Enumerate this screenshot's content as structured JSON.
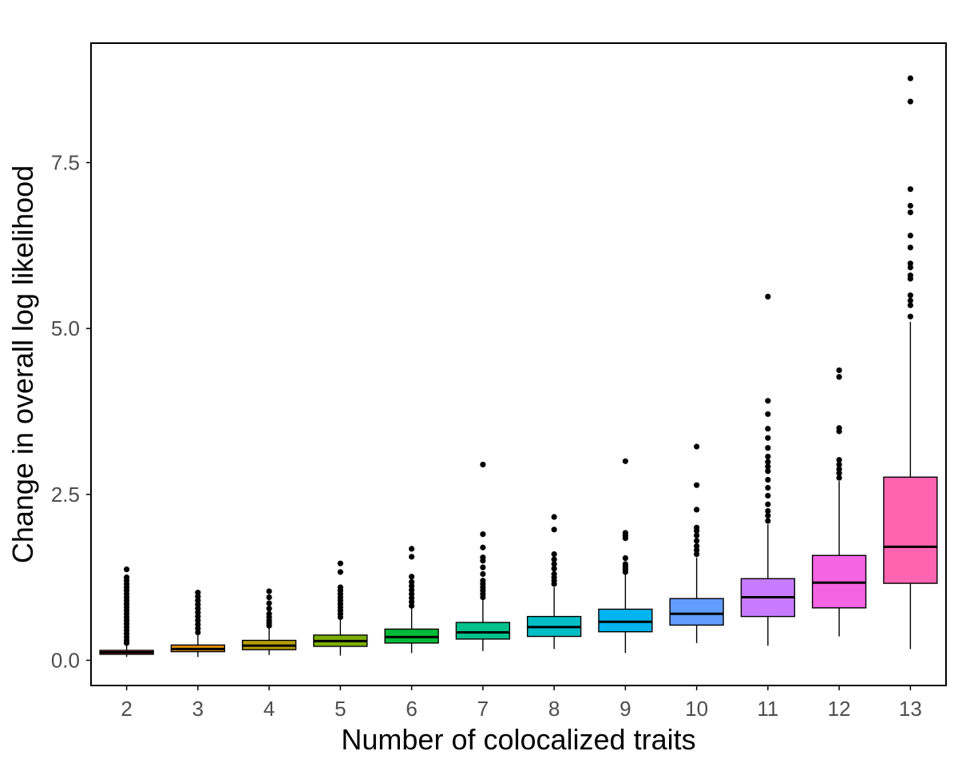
{
  "chart_data": {
    "type": "box",
    "xlabel": "Number of colocalized traits",
    "ylabel": "Change in overall log likelihood",
    "ylim": [
      -0.38,
      9.3
    ],
    "yticks": [
      0.0,
      2.5,
      5.0,
      7.5
    ],
    "ytick_labels": [
      "0.0",
      "2.5",
      "5.0",
      "7.5"
    ],
    "grid": false,
    "legend": "none",
    "categories": [
      "2",
      "3",
      "4",
      "5",
      "6",
      "7",
      "8",
      "9",
      "10",
      "11",
      "12",
      "13"
    ],
    "colors": [
      "#F8766D",
      "#DE8C00",
      "#B79F00",
      "#7CAE00",
      "#00BA38",
      "#00C08B",
      "#00BFC4",
      "#00B4F0",
      "#619CFF",
      "#C77CFF",
      "#F564E3",
      "#FF64B0"
    ],
    "boxes": [
      {
        "category": "2",
        "whisker_low": 0.05,
        "q1": 0.09,
        "median": 0.12,
        "q3": 0.15,
        "whisker_high": 0.24,
        "outliers": [
          0.26,
          0.3,
          0.35,
          0.4,
          0.45,
          0.5,
          0.55,
          0.6,
          0.65,
          0.7,
          0.75,
          0.8,
          0.85,
          0.9,
          0.95,
          1.0,
          1.05,
          1.1,
          1.15,
          1.2,
          1.25,
          1.37
        ]
      },
      {
        "category": "3",
        "whisker_low": 0.05,
        "q1": 0.13,
        "median": 0.17,
        "q3": 0.23,
        "whisker_high": 0.38,
        "outliers": [
          0.42,
          0.48,
          0.54,
          0.6,
          0.66,
          0.72,
          0.78,
          0.84,
          0.9,
          0.96,
          1.02
        ]
      },
      {
        "category": "4",
        "whisker_low": 0.08,
        "q1": 0.16,
        "median": 0.22,
        "q3": 0.3,
        "whisker_high": 0.5,
        "outliers": [
          0.52,
          0.56,
          0.6,
          0.65,
          0.7,
          0.78,
          0.86,
          0.95,
          1.04
        ]
      },
      {
        "category": "5",
        "whisker_low": 0.07,
        "q1": 0.21,
        "median": 0.29,
        "q3": 0.38,
        "whisker_high": 0.62,
        "outliers": [
          0.65,
          0.7,
          0.75,
          0.8,
          0.85,
          0.9,
          0.95,
          1.0,
          1.05,
          1.1,
          1.33,
          1.46
        ]
      },
      {
        "category": "6",
        "whisker_low": 0.11,
        "q1": 0.26,
        "median": 0.35,
        "q3": 0.47,
        "whisker_high": 0.78,
        "outliers": [
          0.82,
          0.88,
          0.94,
          1.0,
          1.06,
          1.12,
          1.18,
          1.26,
          1.56,
          1.68
        ]
      },
      {
        "category": "7",
        "whisker_low": 0.14,
        "q1": 0.32,
        "median": 0.42,
        "q3": 0.57,
        "whisker_high": 0.92,
        "outliers": [
          0.95,
          1.0,
          1.05,
          1.1,
          1.15,
          1.2,
          1.3,
          1.4,
          1.5,
          1.55,
          1.7,
          1.9,
          2.95
        ]
      },
      {
        "category": "8",
        "whisker_low": 0.17,
        "q1": 0.36,
        "median": 0.5,
        "q3": 0.66,
        "whisker_high": 1.1,
        "outliers": [
          1.15,
          1.2,
          1.25,
          1.3,
          1.38,
          1.45,
          1.52,
          1.6,
          1.97,
          2.16
        ]
      },
      {
        "category": "9",
        "whisker_low": 0.11,
        "q1": 0.43,
        "median": 0.58,
        "q3": 0.77,
        "whisker_high": 1.3,
        "outliers": [
          1.33,
          1.37,
          1.41,
          1.45,
          1.54,
          1.84,
          1.88,
          1.92,
          3.0
        ]
      },
      {
        "category": "10",
        "whisker_low": 0.26,
        "q1": 0.53,
        "median": 0.7,
        "q3": 0.93,
        "whisker_high": 1.55,
        "outliers": [
          1.6,
          1.66,
          1.72,
          1.8,
          1.88,
          1.95,
          2.0,
          2.27,
          2.64,
          3.22
        ]
      },
      {
        "category": "11",
        "whisker_low": 0.22,
        "q1": 0.66,
        "median": 0.95,
        "q3": 1.23,
        "whisker_high": 2.05,
        "outliers": [
          2.1,
          2.18,
          2.25,
          2.35,
          2.48,
          2.6,
          2.72,
          2.85,
          2.92,
          2.99,
          3.07,
          3.2,
          3.35,
          3.49,
          3.71,
          3.91,
          5.48
        ]
      },
      {
        "category": "12",
        "whisker_low": 0.36,
        "q1": 0.79,
        "median": 1.17,
        "q3": 1.58,
        "whisker_high": 2.7,
        "outliers": [
          2.75,
          2.82,
          2.88,
          2.95,
          3.02,
          3.45,
          3.5,
          4.27,
          4.37
        ]
      },
      {
        "category": "13",
        "whisker_low": 0.17,
        "q1": 1.16,
        "median": 1.71,
        "q3": 2.76,
        "whisker_high": 5.1,
        "outliers": [
          5.18,
          5.35,
          5.42,
          5.5,
          5.75,
          5.8,
          5.92,
          5.98,
          6.22,
          6.4,
          6.75,
          6.85,
          7.1,
          8.42,
          8.77
        ]
      }
    ]
  }
}
